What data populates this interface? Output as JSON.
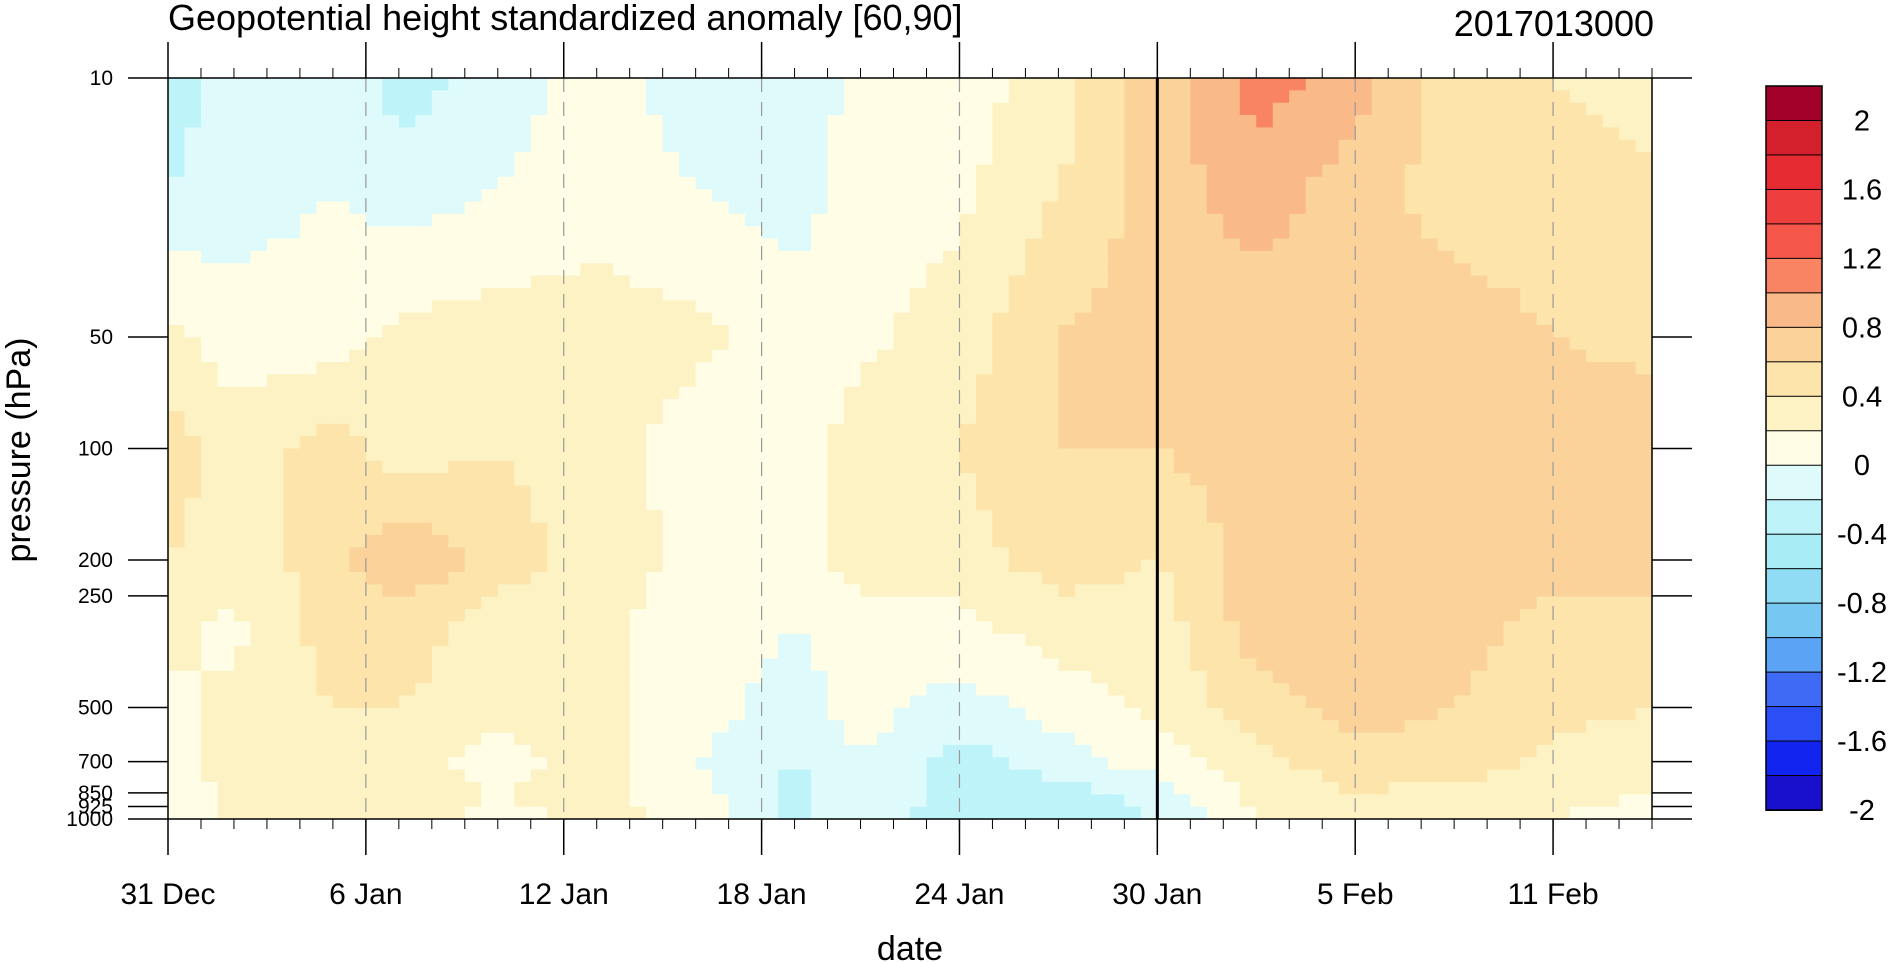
{
  "chart_data": {
    "type": "heatmap",
    "title": "Geopotential height standardized anomaly [60,90]",
    "subtitle": "2017013000",
    "xlabel": "date",
    "ylabel": "pressure (hPa)",
    "x_ticks": [
      "31 Dec",
      "6 Jan",
      "12 Jan",
      "18 Jan",
      "24 Jan",
      "30 Jan",
      "5 Feb",
      "11 Feb"
    ],
    "x_range_days": [
      0,
      45
    ],
    "y_scale": "log",
    "y_ticks": [
      10,
      50,
      100,
      200,
      250,
      500,
      700,
      850,
      925,
      1000
    ],
    "y_tick_labels": [
      "10",
      "50",
      "100",
      "200",
      "250",
      "500",
      "700",
      "850",
      "925",
      "1000"
    ],
    "ylim": [
      1000,
      10
    ],
    "current_time_line": "30 Jan",
    "colorbar": {
      "levels": [
        -2.2,
        -2,
        -1.8,
        -1.6,
        -1.4,
        -1.2,
        -1,
        -0.8,
        -0.6,
        -0.4,
        -0.2,
        0,
        0.2,
        0.4,
        0.6,
        0.8,
        1,
        1.2,
        1.4,
        1.6,
        1.8,
        2,
        2.2
      ],
      "colors": [
        "#1810cd",
        "#1224ef",
        "#2a4ff6",
        "#3f6af5",
        "#5aa3f5",
        "#77c7f3",
        "#8fdcf4",
        "#a8ecf6",
        "#bef4f9",
        "#dffafa",
        "#fffde6",
        "#fdf2c4",
        "#fce4aa",
        "#fbd39a",
        "#f9b988",
        "#f88464",
        "#f45649",
        "#ef3e3e",
        "#e62c32",
        "#d41f2c",
        "#a3002a"
      ],
      "labels": [
        "2",
        "1.6",
        "1.2",
        "0.8",
        "0.4",
        "0",
        "-0.4",
        "-0.8",
        "-1.2",
        "-1.6",
        "-2"
      ]
    },
    "grid": {
      "columns_day_offset": [
        0,
        2,
        5,
        7,
        10,
        13,
        16,
        19,
        21,
        24,
        27,
        30,
        33,
        36,
        39,
        42,
        45
      ],
      "rows_pressure": [
        10,
        20,
        50,
        100,
        200,
        300,
        500,
        700,
        850,
        1000
      ],
      "values": [
        [
          -0.5,
          -0.3,
          -0.2,
          -0.5,
          -0.3,
          -0.1,
          -0.3,
          -0.4,
          -0.1,
          -0.1,
          0.1,
          0.5,
          0.9,
          0.7,
          0.3,
          0.2,
          0.1
        ],
        [
          -0.4,
          -0.3,
          -0.2,
          -0.3,
          -0.2,
          -0.1,
          -0.2,
          -0.3,
          -0.1,
          -0.05,
          0.2,
          0.5,
          0.7,
          0.5,
          0.3,
          0.3,
          0.25
        ],
        [
          0.05,
          -0.1,
          -0.1,
          0.05,
          0.1,
          0.1,
          0.05,
          -0.1,
          -0.05,
          0.1,
          0.4,
          0.5,
          0.5,
          0.5,
          0.5,
          0.4,
          0.35
        ],
        [
          0.3,
          0.1,
          0.3,
          0.1,
          0.2,
          0.1,
          -0.1,
          -0.1,
          0.1,
          0.2,
          0.4,
          0.4,
          0.5,
          0.5,
          0.5,
          0.5,
          0.5
        ],
        [
          0.2,
          0.1,
          0.3,
          0.6,
          0.3,
          0.1,
          -0.05,
          -0.1,
          0.1,
          0.1,
          0.3,
          0.2,
          0.5,
          0.5,
          0.5,
          0.5,
          0.5
        ],
        [
          0.05,
          -0.05,
          0.3,
          0.3,
          0.1,
          0.05,
          -0.1,
          -0.2,
          -0.1,
          -0.05,
          0.1,
          0.1,
          0.5,
          0.5,
          0.5,
          0.3,
          0.3
        ],
        [
          -0.05,
          0.05,
          0.2,
          0.2,
          0.1,
          0.05,
          -0.1,
          -0.3,
          -0.1,
          -0.3,
          -0.1,
          0.05,
          0.3,
          0.5,
          0.4,
          0.25,
          0.2
        ],
        [
          -0.1,
          0.1,
          0.2,
          0.1,
          -0.1,
          0.1,
          -0.2,
          -0.4,
          -0.2,
          -0.5,
          -0.3,
          -0.1,
          0.15,
          0.3,
          0.3,
          0.15,
          0.1
        ],
        [
          -0.1,
          0.05,
          0.1,
          0.1,
          0.0,
          0.05,
          -0.1,
          -0.5,
          -0.2,
          -0.5,
          -0.5,
          -0.3,
          0.05,
          0.2,
          0.15,
          0.05,
          0.0
        ],
        [
          -0.1,
          0.05,
          0.05,
          0.05,
          -0.05,
          0.05,
          -0.05,
          -0.5,
          -0.2,
          -0.6,
          -0.6,
          -0.4,
          0.0,
          0.15,
          0.1,
          0.0,
          -0.05
        ]
      ]
    }
  }
}
